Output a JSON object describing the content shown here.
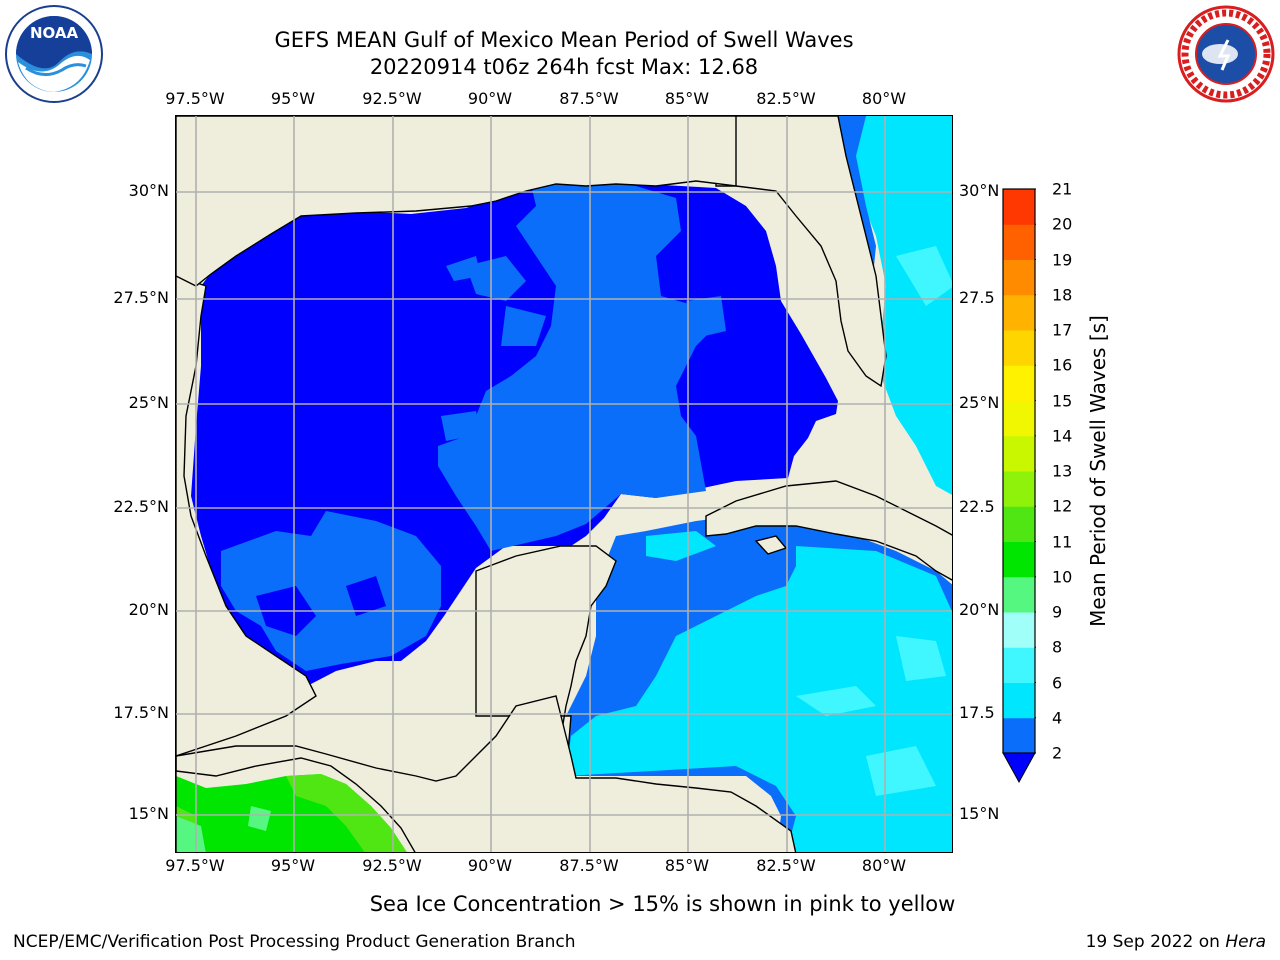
{
  "header": {
    "title_line1": "GEFS MEAN Gulf of Mexico Mean Period of Swell Waves",
    "title_line2": "20220914 t06z 264h fcst   Max: 12.68"
  },
  "logos": {
    "left": "noaa-logo",
    "left_text": "NOAA",
    "right": "nws-logo"
  },
  "map": {
    "lon_labels": [
      "97.5°W",
      "95°W",
      "92.5°W",
      "90°W",
      "87.5°W",
      "85°W",
      "82.5°W",
      "80°W"
    ],
    "lat_labels": [
      "30°N",
      "27.5°N",
      "25°N",
      "22.5°N",
      "20°N",
      "17.5°N",
      "15°N"
    ],
    "right_lat_labels": [
      "30°N",
      "27.5",
      "25°N",
      "22.5",
      "20°N",
      "17.5",
      "15°N"
    ],
    "lon_values": [
      -97.5,
      -95,
      -92.5,
      -90,
      -87.5,
      -85,
      -82.5,
      -80
    ],
    "lat_values": [
      30,
      27.5,
      25,
      22.5,
      20,
      17.5,
      15
    ],
    "extent": {
      "lon_min": -98,
      "lon_max": -78.3,
      "lat_min": 14,
      "lat_max": 31.6
    },
    "colors": {
      "land": "#efeedd",
      "grid": "#b0b0b0",
      "coast": "#000000"
    }
  },
  "colorbar": {
    "title": "Mean Period of Swell Waves [s]",
    "ticks": [
      "2",
      "4",
      "6",
      "8",
      "9",
      "10",
      "11",
      "12",
      "13",
      "14",
      "15",
      "16",
      "17",
      "18",
      "19",
      "20",
      "21"
    ],
    "colors": [
      "#0a6efa",
      "#00e6ff",
      "#40f7ff",
      "#a0fff9",
      "#56f780",
      "#00e600",
      "#4fe614",
      "#8ef20a",
      "#c9f700",
      "#f0f700",
      "#fff200",
      "#ffd500",
      "#ffb300",
      "#ff8c00",
      "#ff6000",
      "#ff3700",
      "#ff0000"
    ],
    "extend_color": "#0000ff"
  },
  "footer": {
    "note": "Sea Ice Concentration > 15% is shown in pink to yellow",
    "left": "NCEP/EMC/Verification Post Processing Product Generation Branch",
    "right_date": "19 Sep 2022 on ",
    "right_host": "Hera"
  }
}
